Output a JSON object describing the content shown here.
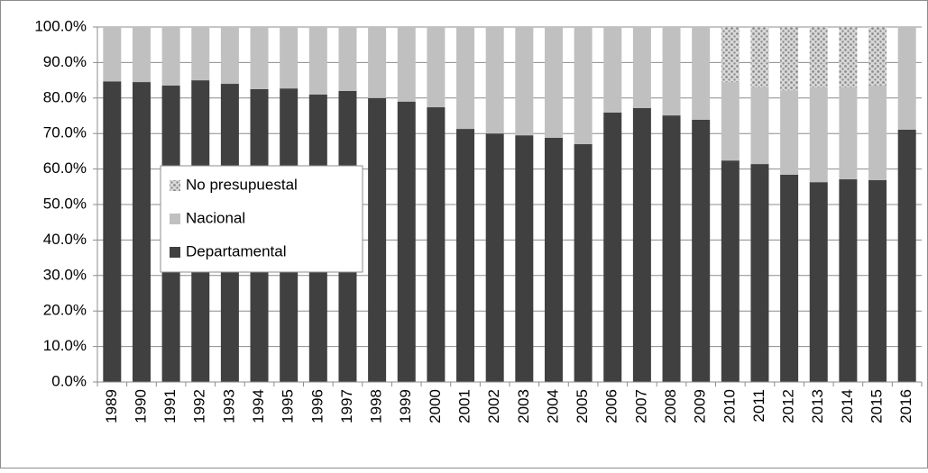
{
  "chart_data": {
    "type": "stacked_bar",
    "categories": [
      "1989",
      "1990",
      "1991",
      "1992",
      "1993",
      "1994",
      "1995",
      "1996",
      "1997",
      "1998",
      "1999",
      "2000",
      "2001",
      "2002",
      "2003",
      "2004",
      "2005",
      "2006",
      "2007",
      "2008",
      "2009",
      "2010",
      "2011",
      "2012",
      "2013",
      "2014",
      "2015",
      "2016"
    ],
    "series": [
      {
        "name": "Departamental",
        "color": "#404040",
        "values": [
          84.7,
          84.5,
          83.5,
          85,
          84,
          82.5,
          82.7,
          81,
          82,
          80,
          79,
          77.4,
          71.3,
          70,
          69.5,
          68.8,
          67,
          75.9,
          77.2,
          75.1,
          73.9,
          62.4,
          61.4,
          58.4,
          56.3,
          57.1,
          56.9,
          71.1
        ]
      },
      {
        "name": "Nacional",
        "color": "#c0c0c0",
        "values": [
          15.3,
          15.5,
          16.5,
          15,
          16,
          17.5,
          17.3,
          19,
          18,
          20,
          21,
          22.6,
          28.7,
          30,
          30.5,
          31.2,
          33,
          24.1,
          22.8,
          24.9,
          26.1,
          22.1,
          21.6,
          23.8,
          26.7,
          25.9,
          26.6,
          28.9
        ]
      },
      {
        "name": "No presupuestal",
        "color": "#8c8c8c",
        "values": [
          null,
          null,
          null,
          null,
          null,
          null,
          null,
          null,
          null,
          null,
          null,
          null,
          null,
          null,
          null,
          null,
          null,
          null,
          null,
          null,
          null,
          15.5,
          17,
          17.8,
          17,
          17,
          16.5,
          null
        ]
      }
    ],
    "ylim": [
      0,
      100
    ],
    "yticks": [
      {
        "value": 0,
        "label": "0.0%"
      },
      {
        "value": 10,
        "label": "10.0%"
      },
      {
        "value": 20,
        "label": "20.0%"
      },
      {
        "value": 30,
        "label": "30.0%"
      },
      {
        "value": 40,
        "label": "40.0%"
      },
      {
        "value": 50,
        "label": "50.0%"
      },
      {
        "value": 60,
        "label": "60.0%"
      },
      {
        "value": 70,
        "label": "70.0%"
      },
      {
        "value": 80,
        "label": "80.0%"
      },
      {
        "value": 90,
        "label": "90.0%"
      },
      {
        "value": 100,
        "label": "100.0%"
      }
    ],
    "grid": true
  }
}
